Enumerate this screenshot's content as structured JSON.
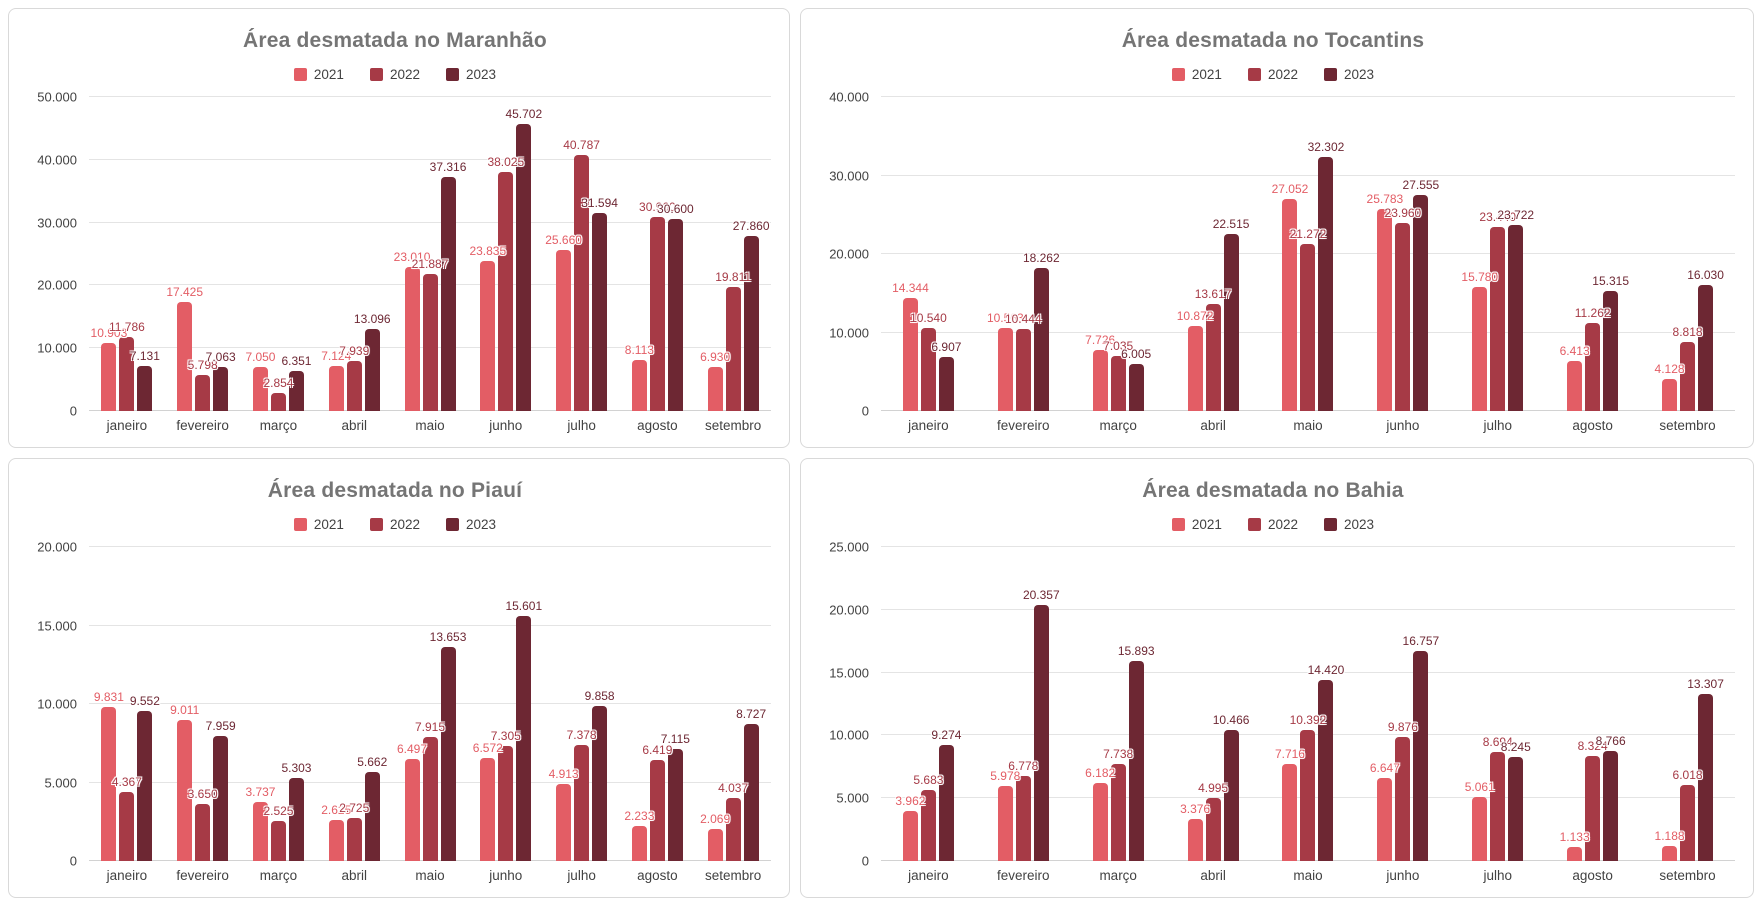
{
  "colors": {
    "series_2021": "#e35d65",
    "series_2022": "#a63a46",
    "series_2023": "#6d2733",
    "title_text": "#757575",
    "axis_text": "#424242",
    "gridline": "#e4e4e4"
  },
  "chart_data": [
    {
      "type": "bar",
      "title": "Área desmatada no Maranhão",
      "legend_position": "top",
      "grid": true,
      "categories": [
        "janeiro",
        "fevereiro",
        "março",
        "abril",
        "maio",
        "junho",
        "julho",
        "agosto",
        "setembro"
      ],
      "ylim": [
        0,
        50000
      ],
      "ytick_step": 10000,
      "series": [
        {
          "name": "2021",
          "color": "#e35d65",
          "values": [
            10903,
            17425,
            7050,
            7124,
            23010,
            23835,
            25660,
            8113,
            6930
          ]
        },
        {
          "name": "2022",
          "color": "#a63a46",
          "values": [
            11786,
            5798,
            2854,
            7939,
            21887,
            38025,
            40787,
            30960,
            19811
          ]
        },
        {
          "name": "2023",
          "color": "#6d2733",
          "values": [
            7131,
            7063,
            6351,
            13096,
            37316,
            45702,
            31594,
            30600,
            27860
          ]
        }
      ]
    },
    {
      "type": "bar",
      "title": "Área desmatada no Tocantins",
      "legend_position": "top",
      "grid": true,
      "categories": [
        "janeiro",
        "fevereiro",
        "março",
        "abril",
        "maio",
        "junho",
        "julho",
        "agosto",
        "setembro"
      ],
      "ylim": [
        0,
        40000
      ],
      "ytick_step": 10000,
      "series": [
        {
          "name": "2021",
          "color": "#e35d65",
          "values": [
            14344,
            10563,
            7726,
            10872,
            27052,
            25783,
            15780,
            6413,
            4128
          ]
        },
        {
          "name": "2022",
          "color": "#a63a46",
          "values": [
            10540,
            10444,
            7035,
            13617,
            21272,
            23960,
            23440,
            11262,
            8818
          ]
        },
        {
          "name": "2023",
          "color": "#6d2733",
          "values": [
            6907,
            18262,
            6005,
            22515,
            32302,
            27555,
            23722,
            15315,
            16030
          ]
        }
      ]
    },
    {
      "type": "bar",
      "title": "Área desmatada no Piauí",
      "legend_position": "top",
      "grid": true,
      "categories": [
        "janeiro",
        "fevereiro",
        "março",
        "abril",
        "maio",
        "junho",
        "julho",
        "agosto",
        "setembro"
      ],
      "ylim": [
        0,
        20000
      ],
      "ytick_step": 5000,
      "series": [
        {
          "name": "2021",
          "color": "#e35d65",
          "values": [
            9831,
            9011,
            3737,
            2625,
            6497,
            6572,
            4913,
            2233,
            2069
          ]
        },
        {
          "name": "2022",
          "color": "#a63a46",
          "values": [
            4367,
            3650,
            2525,
            2725,
            7915,
            7305,
            7378,
            6419,
            4037
          ]
        },
        {
          "name": "2023",
          "color": "#6d2733",
          "values": [
            9552,
            7959,
            5303,
            5662,
            13653,
            15601,
            9858,
            7115,
            8727
          ]
        }
      ]
    },
    {
      "type": "bar",
      "title": "Área desmatada no Bahia",
      "legend_position": "top",
      "grid": true,
      "categories": [
        "janeiro",
        "fevereiro",
        "março",
        "abril",
        "maio",
        "junho",
        "julho",
        "agosto",
        "setembro"
      ],
      "ylim": [
        0,
        25000
      ],
      "ytick_step": 5000,
      "series": [
        {
          "name": "2021",
          "color": "#e35d65",
          "values": [
            3962,
            5978,
            6182,
            3376,
            7716,
            6647,
            5061,
            1133,
            1188
          ]
        },
        {
          "name": "2022",
          "color": "#a63a46",
          "values": [
            5683,
            6778,
            7738,
            4995,
            10392,
            9876,
            8694,
            8324,
            6018
          ]
        },
        {
          "name": "2023",
          "color": "#6d2733",
          "values": [
            9274,
            20357,
            15893,
            10466,
            14420,
            16757,
            8245,
            8766,
            13307
          ]
        }
      ]
    }
  ]
}
